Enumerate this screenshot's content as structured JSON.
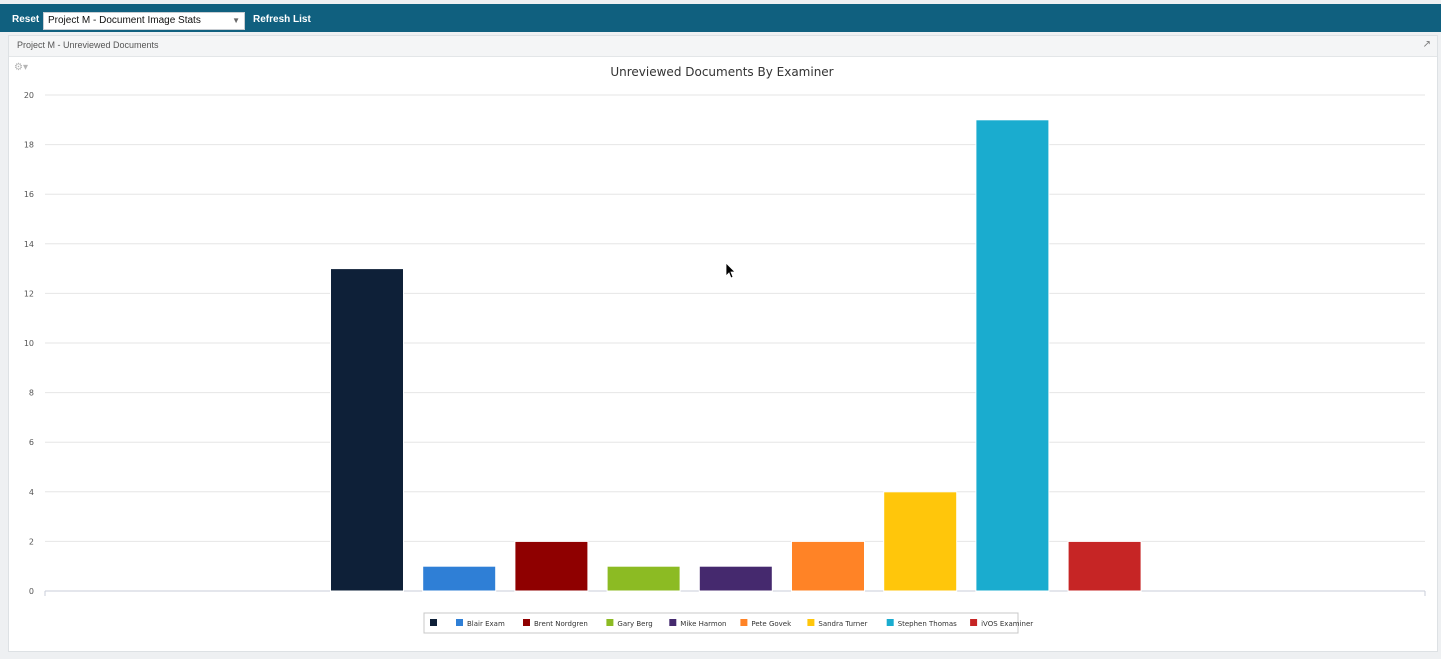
{
  "toolbar": {
    "reset_label": "Reset",
    "project_select_value": "Project M - Document Image Stats",
    "refresh_label": "Refresh List"
  },
  "panel": {
    "title": "Project M - Unreviewed Documents",
    "collapse_icon": "collapse-arrows-icon",
    "settings_icon": "gear-icon"
  },
  "chart_data": {
    "type": "bar",
    "title": "Unreviewed Documents By Examiner",
    "xlabel": "",
    "ylabel": "",
    "ylim": [
      0,
      20
    ],
    "yticks": [
      0,
      2,
      4,
      6,
      8,
      10,
      12,
      14,
      16,
      18,
      20
    ],
    "grid": true,
    "legend_position": "bottom-center",
    "series": [
      {
        "name": "",
        "value": 13,
        "color": "#0e2038"
      },
      {
        "name": "Blair Exam",
        "value": 1,
        "color": "#2f7fd6"
      },
      {
        "name": "Brent Nordgren",
        "value": 2,
        "color": "#8f0000"
      },
      {
        "name": "Gary Berg",
        "value": 1,
        "color": "#8cbb23"
      },
      {
        "name": "Mike Harmon",
        "value": 1,
        "color": "#45296e"
      },
      {
        "name": "Pete Govek",
        "value": 2,
        "color": "#ff8326"
      },
      {
        "name": "Sandra Turner",
        "value": 4,
        "color": "#ffc60b"
      },
      {
        "name": "Stephen Thomas",
        "value": 19,
        "color": "#1aaccf"
      },
      {
        "name": "iVOS Examiner",
        "value": 2,
        "color": "#c62525"
      }
    ]
  }
}
